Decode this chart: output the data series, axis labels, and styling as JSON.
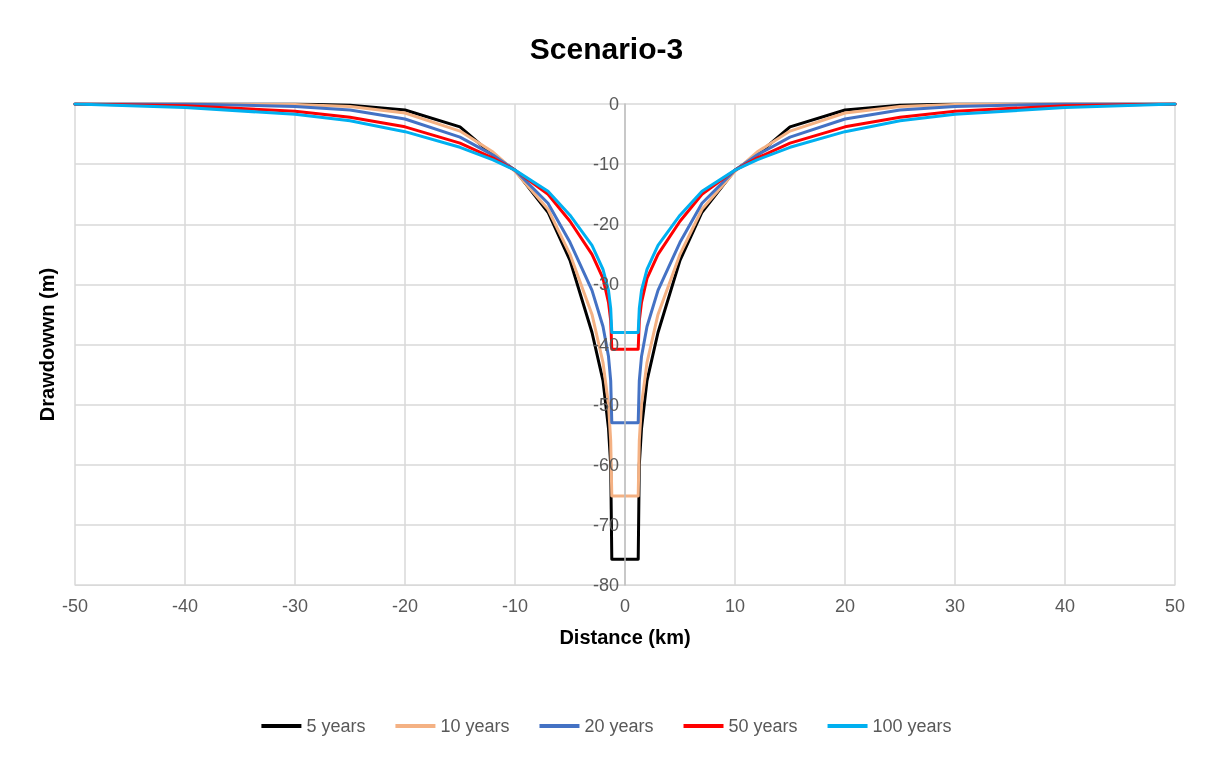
{
  "chart_data": {
    "type": "line",
    "title": "Scenario-3",
    "xlabel": "Distance (km)",
    "ylabel": "Drawdowwn (m)",
    "x": [
      -50,
      -40,
      -30,
      -25,
      -20,
      -15,
      -12,
      -10,
      -7,
      -5,
      -3,
      -2,
      -1.5,
      -1.3,
      -1.2,
      1.2,
      1.3,
      1.5,
      2,
      3,
      5,
      7,
      10,
      12,
      15,
      20,
      25,
      30,
      40,
      50
    ],
    "series": [
      {
        "name": "5 years",
        "color": "#000000",
        "values": [
          0,
          0,
          0,
          -0.2,
          -1,
          -3.8,
          -8.5,
          -11,
          -18,
          -26,
          -38,
          -46,
          -54,
          -60,
          -75.7,
          -75.7,
          -60,
          -54,
          -46,
          -38,
          -26,
          -18,
          -11,
          -8.5,
          -3.8,
          -1,
          -0.2,
          0,
          0,
          0
        ]
      },
      {
        "name": "10 years",
        "color": "#f4b183",
        "values": [
          0,
          0,
          -0.1,
          -0.4,
          -1.5,
          -4.5,
          -8,
          -11.2,
          -17.5,
          -25,
          -35,
          -43,
          -50,
          -56,
          -65.2,
          -65.2,
          -56,
          -50,
          -43,
          -35,
          -25,
          -17.5,
          -11.2,
          -8,
          -4.5,
          -1.5,
          -0.4,
          -0.1,
          0,
          0
        ]
      },
      {
        "name": "20 years",
        "color": "#4472c4",
        "values": [
          0,
          0,
          -0.4,
          -1,
          -2.5,
          -5.5,
          -8.5,
          -11,
          -16.5,
          -23,
          -31,
          -37,
          -42,
          -46,
          -53,
          -53,
          -46,
          -42,
          -37,
          -31,
          -23,
          -16.5,
          -11,
          -8.5,
          -5.5,
          -2.5,
          -1,
          -0.4,
          0,
          0
        ]
      },
      {
        "name": "50 years",
        "color": "#ff0000",
        "values": [
          0,
          -0.3,
          -1.2,
          -2.2,
          -3.8,
          -6.5,
          -9,
          -11,
          -15,
          -19.5,
          -25,
          -29,
          -33,
          -36,
          -40.8,
          -40.8,
          -36,
          -33,
          -29,
          -25,
          -19.5,
          -15,
          -11,
          -9,
          -6.5,
          -3.8,
          -2.2,
          -1.2,
          -0.3,
          0
        ]
      },
      {
        "name": "100 years",
        "color": "#00b0f0",
        "values": [
          0,
          -0.6,
          -1.7,
          -2.8,
          -4.6,
          -7.2,
          -9.3,
          -11,
          -14.5,
          -18.5,
          -23.5,
          -27.5,
          -31,
          -34,
          -38,
          -38,
          -34,
          -31,
          -27.5,
          -23.5,
          -18.5,
          -14.5,
          -11,
          -9.3,
          -7.2,
          -4.6,
          -2.8,
          -1.7,
          -0.6,
          0
        ]
      }
    ],
    "xlim": [
      -50,
      50
    ],
    "xticks": [
      -50,
      -40,
      -30,
      -20,
      -10,
      0,
      10,
      20,
      30,
      40,
      50
    ],
    "ylim": [
      -80,
      0
    ],
    "yticks": [
      -80,
      -70,
      -60,
      -50,
      -40,
      -30,
      -20,
      -10,
      0
    ],
    "grid": true,
    "legend": "bottom",
    "marker": "none",
    "line_style": "solid"
  }
}
